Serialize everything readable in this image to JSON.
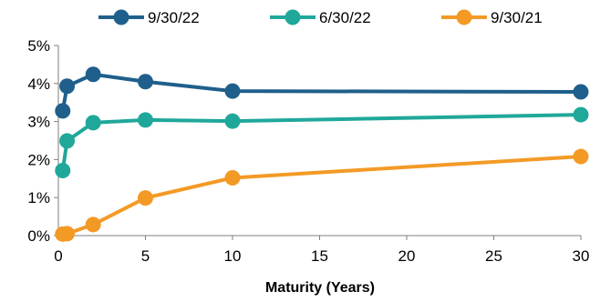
{
  "chart_data": {
    "type": "line",
    "xlabel": "Maturity (Years)",
    "ylabel": "",
    "xlim": [
      0,
      30
    ],
    "ylim": [
      0,
      0.05
    ],
    "x_ticks": [
      0,
      5,
      10,
      15,
      20,
      25,
      30
    ],
    "x_tick_labels": [
      "0",
      "5",
      "10",
      "15",
      "20",
      "25",
      "30"
    ],
    "y_ticks": [
      0,
      0.01,
      0.02,
      0.03,
      0.04,
      0.05
    ],
    "y_tick_labels": [
      "0%",
      "1%",
      "2%",
      "3%",
      "4%",
      "5%"
    ],
    "grid": false,
    "legend_position": "top",
    "x": [
      0.25,
      0.5,
      2,
      5,
      10,
      30
    ],
    "series": [
      {
        "name": "9/30/22",
        "color": "#1F5F8B",
        "values": [
          0.0328,
          0.0393,
          0.0424,
          0.0405,
          0.038,
          0.0378
        ]
      },
      {
        "name": "6/30/22",
        "color": "#1FA89A",
        "values": [
          0.0171,
          0.0249,
          0.0297,
          0.0304,
          0.0301,
          0.0318
        ]
      },
      {
        "name": "9/30/21",
        "color": "#F39A26",
        "values": [
          0.0004,
          0.0005,
          0.0029,
          0.0099,
          0.0152,
          0.0208
        ]
      }
    ]
  }
}
